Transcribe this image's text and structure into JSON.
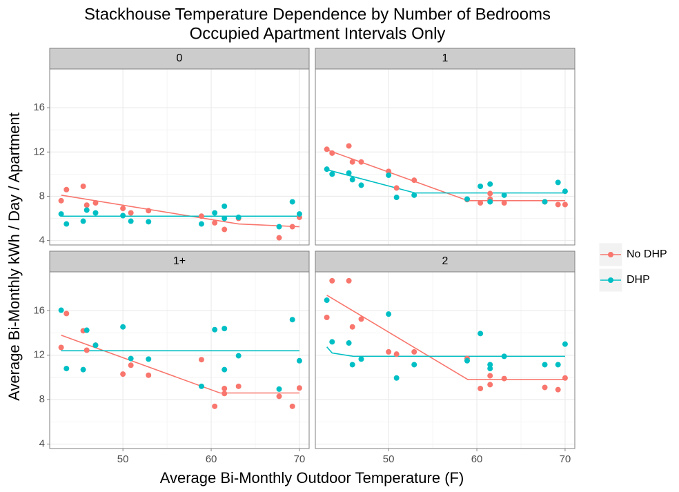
{
  "title": "Stackhouse Temperature Dependence by Number of Bedrooms",
  "subtitle": "Occupied Apartment Intervals Only",
  "x_label": "Average Bi-Monthly Outdoor Temperature (F)",
  "y_label": "Average Bi-Monthly kWh / Day / Apartment",
  "xlim": [
    41.7,
    71.1
  ],
  "xticks": [
    50,
    60,
    70
  ],
  "ylim": [
    3.6,
    19.5
  ],
  "yticks": [
    4,
    8,
    12,
    16
  ],
  "grid": true,
  "legend": {
    "position": "right",
    "entries": [
      {
        "name": "No DHP",
        "color": "#f8766d"
      },
      {
        "name": "DHP",
        "color": "#00bfc4"
      }
    ]
  },
  "chart_data": [
    {
      "type": "scatter",
      "title": "0",
      "series": [
        {
          "x": [
            43.0,
            43.6,
            45.5,
            45.9,
            46.9,
            50.0,
            50.9,
            52.9,
            58.9,
            60.4,
            61.5,
            63.1,
            67.7,
            69.2,
            70.0
          ],
          "values": [
            7.6,
            8.6,
            8.9,
            7.2,
            7.4,
            6.9,
            6.5,
            6.7,
            6.2,
            5.6,
            5.0,
            6.0,
            4.25,
            5.25,
            6.1
          ],
          "fit_x": [
            43.0,
            63.1,
            70.0
          ],
          "fit_values": [
            8.1,
            5.5,
            5.25
          ]
        },
        {
          "x": [
            43.0,
            43.6,
            45.5,
            45.9,
            46.9,
            50.0,
            50.9,
            52.9,
            58.9,
            60.4,
            61.5,
            61.5,
            63.1,
            67.7,
            69.2,
            70.0
          ],
          "values": [
            6.4,
            5.5,
            5.75,
            6.75,
            6.5,
            6.25,
            5.75,
            5.7,
            5.5,
            6.5,
            7.1,
            6.0,
            6.1,
            5.25,
            7.5,
            6.4
          ],
          "fit_x": [
            43.0,
            70.0
          ],
          "fit_values": [
            6.2,
            6.2
          ]
        }
      ]
    },
    {
      "type": "scatter",
      "title": "1",
      "series": [
        {
          "x": [
            43.0,
            43.6,
            45.5,
            45.9,
            46.9,
            50.0,
            50.9,
            52.9,
            58.9,
            60.4,
            61.5,
            61.5,
            63.1,
            67.7,
            69.2,
            70.0
          ],
          "values": [
            12.25,
            11.9,
            12.55,
            11.1,
            11.1,
            10.25,
            8.75,
            9.45,
            7.7,
            7.4,
            8.25,
            7.75,
            7.4,
            7.5,
            7.25,
            7.25
          ],
          "fit_x": [
            43.0,
            59.0,
            70.0
          ],
          "fit_values": [
            12.2,
            7.6,
            7.6
          ]
        },
        {
          "x": [
            43.0,
            43.6,
            45.5,
            45.9,
            46.9,
            50.0,
            50.9,
            52.9,
            58.9,
            60.4,
            61.5,
            61.5,
            63.1,
            67.7,
            69.2,
            70.0
          ],
          "values": [
            10.45,
            10.0,
            10.1,
            9.5,
            9.0,
            9.9,
            7.9,
            8.1,
            7.75,
            8.9,
            9.1,
            7.5,
            8.1,
            7.5,
            9.25,
            8.45
          ],
          "fit_x": [
            43.0,
            53.0,
            70.0
          ],
          "fit_values": [
            10.4,
            8.3,
            8.3
          ]
        }
      ]
    },
    {
      "type": "scatter",
      "title": "1+",
      "series": [
        {
          "x": [
            43.0,
            43.6,
            45.5,
            45.9,
            46.9,
            50.0,
            50.9,
            52.9,
            58.9,
            60.4,
            61.5,
            61.5,
            63.1,
            67.7,
            69.2,
            70.0
          ],
          "values": [
            12.7,
            15.75,
            14.2,
            12.45,
            12.9,
            10.3,
            11.1,
            10.2,
            11.6,
            7.4,
            9.0,
            8.55,
            9.2,
            8.3,
            7.4,
            9.05
          ],
          "fit_x": [
            43.0,
            61.0,
            70.0
          ],
          "fit_values": [
            13.8,
            8.6,
            8.6
          ]
        },
        {
          "x": [
            43.0,
            43.6,
            45.5,
            45.9,
            46.9,
            50.0,
            50.9,
            52.9,
            58.9,
            60.4,
            61.5,
            61.5,
            63.1,
            67.7,
            69.2,
            70.0
          ],
          "values": [
            16.05,
            10.8,
            10.7,
            14.25,
            12.9,
            14.55,
            11.7,
            11.65,
            9.2,
            14.3,
            14.4,
            10.7,
            11.95,
            8.95,
            15.2,
            11.5
          ],
          "fit_x": [
            43.0,
            70.0
          ],
          "fit_values": [
            12.4,
            12.4
          ]
        }
      ]
    },
    {
      "type": "scatter",
      "title": "2",
      "series": [
        {
          "x": [
            43.0,
            43.6,
            45.5,
            45.9,
            46.9,
            50.0,
            50.9,
            52.9,
            58.9,
            60.4,
            61.5,
            61.5,
            63.1,
            67.7,
            69.2,
            70.0
          ],
          "values": [
            15.4,
            18.7,
            18.7,
            14.55,
            15.25,
            12.3,
            12.1,
            12.3,
            11.7,
            9.0,
            10.15,
            9.35,
            9.9,
            9.1,
            8.9,
            9.95
          ],
          "fit_x": [
            43.0,
            59.0,
            70.0
          ],
          "fit_values": [
            17.4,
            9.8,
            9.8
          ]
        },
        {
          "x": [
            43.0,
            43.6,
            45.5,
            45.9,
            46.9,
            50.0,
            50.9,
            52.9,
            58.9,
            60.4,
            61.5,
            61.5,
            63.1,
            67.7,
            69.2,
            70.0
          ],
          "values": [
            16.95,
            13.2,
            13.1,
            11.15,
            11.65,
            15.7,
            9.95,
            11.15,
            11.5,
            13.95,
            11.15,
            10.8,
            11.9,
            11.15,
            11.15,
            13.0
          ],
          "fit_x": [
            43.0,
            43.6,
            46.0,
            70.0
          ],
          "fit_values": [
            12.75,
            12.2,
            11.9,
            11.9
          ]
        }
      ]
    }
  ]
}
